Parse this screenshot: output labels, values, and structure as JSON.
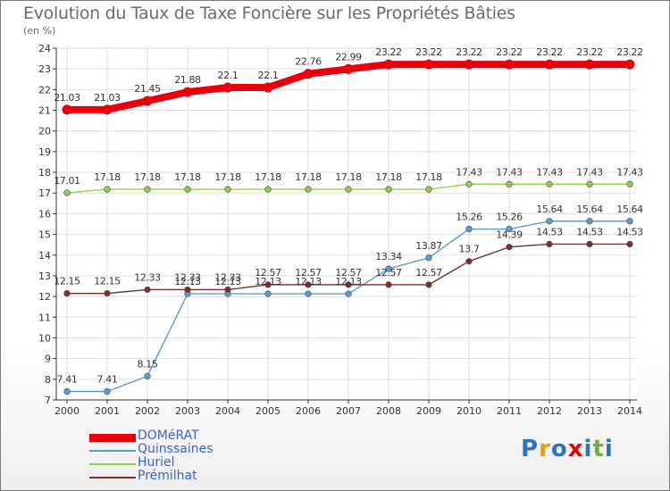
{
  "chart_data": {
    "type": "line",
    "title": "Evolution du Taux de Taxe Foncière sur les Propriétés Bâties",
    "unit_label": "(en %)",
    "x": [
      "2000",
      "2001",
      "2002",
      "2003",
      "2004",
      "2005",
      "2006",
      "2007",
      "2008",
      "2009",
      "2010",
      "2011",
      "2012",
      "2013",
      "2014"
    ],
    "y_ticks": [
      "7",
      "8",
      "9",
      "10",
      "11",
      "12",
      "13",
      "14",
      "15",
      "16",
      "17",
      "18",
      "19",
      "20",
      "21",
      "22",
      "23",
      "24"
    ],
    "ylim": [
      7,
      24
    ],
    "grid": true,
    "legend_position": "bottom-left",
    "series": [
      {
        "name": "DOMéRAT",
        "color": "#e8000b",
        "values": [
          21.03,
          21.03,
          21.45,
          21.88,
          22.1,
          22.1,
          22.76,
          22.99,
          23.22,
          23.22,
          23.22,
          23.22,
          23.22,
          23.22,
          23.22
        ],
        "labels": [
          "21.03",
          "21.03",
          "21.45",
          "21.88",
          "22.1",
          "22.1",
          "22.76",
          "22.99",
          "23.22",
          "23.22",
          "23.22",
          "23.22",
          "23.22",
          "23.22",
          "23.22"
        ]
      },
      {
        "name": "Quinssaines",
        "color": "#5b9bd5",
        "values": [
          7.41,
          7.41,
          8.15,
          12.13,
          12.13,
          12.13,
          12.13,
          12.13,
          13.34,
          13.87,
          15.26,
          15.26,
          15.64,
          15.64,
          15.64
        ],
        "labels": [
          "7.41",
          "7.41",
          "8.15",
          "12.13",
          "12.13",
          "12.13",
          "12.13",
          "12.13",
          "13.34",
          "13.87",
          "15.26",
          "15.26",
          "15.64",
          "15.64",
          "15.64"
        ]
      },
      {
        "name": "Huriel",
        "color": "#8fd14f",
        "values": [
          17.01,
          17.18,
          17.18,
          17.18,
          17.18,
          17.18,
          17.18,
          17.18,
          17.18,
          17.18,
          17.43,
          17.43,
          17.43,
          17.43,
          17.43
        ],
        "labels": [
          "17.01",
          "17.18",
          "17.18",
          "17.18",
          "17.18",
          "17.18",
          "17.18",
          "17.18",
          "17.18",
          "17.18",
          "17.43",
          "17.43",
          "17.43",
          "17.43",
          "17.43"
        ]
      },
      {
        "name": "Prémilhat",
        "color": "#7b2c2c",
        "values": [
          12.15,
          12.15,
          12.33,
          12.33,
          12.33,
          12.57,
          12.57,
          12.57,
          12.57,
          12.57,
          13.7,
          14.39,
          14.53,
          14.53,
          14.53
        ],
        "labels": [
          "12.15",
          "12.15",
          "12.33",
          "12.33",
          "12.33",
          "12.57",
          "12.57",
          "12.57",
          "12.57",
          "12.57",
          "13.7",
          "14.39",
          "14.53",
          "14.53",
          "14.53"
        ]
      }
    ]
  },
  "logo": {
    "text": "Proxiti",
    "letters": [
      "P",
      "r",
      "o",
      "x",
      "i",
      "t",
      "i"
    ],
    "colors": [
      "#2e75b6",
      "#e8a000",
      "#2e75b6",
      "#e8000b",
      "#2e75b6",
      "#70ad47",
      "#2e75b6"
    ]
  }
}
